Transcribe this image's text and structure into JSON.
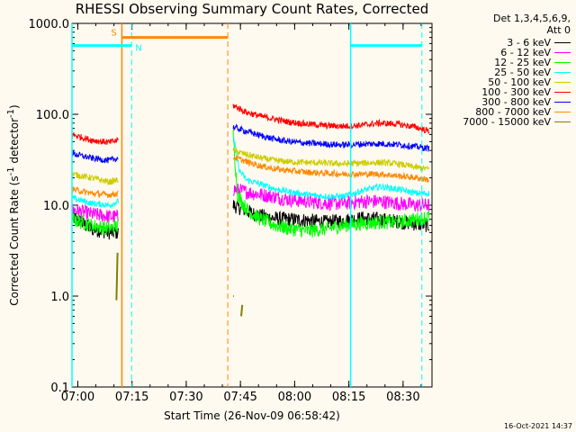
{
  "chart_data": {
    "type": "line",
    "title": "RHESSI Observing Summary Count Rates, Corrected",
    "xlabel": "Start Time (26-Nov-09 06:58:42)",
    "ylabel_main": "Corrected Count Rate (s",
    "ylabel_sup1": "-1",
    "ylabel_mid": " detector",
    "ylabel_sup2": "-1",
    "ylabel_end": ")",
    "yscale": "log",
    "ylim": [
      0.1,
      1000
    ],
    "xlim_minutes": [
      -0.3,
      99.3
    ],
    "xtick_labels": [
      "07:00",
      "07:15",
      "07:30",
      "07:45",
      "08:00",
      "08:15",
      "08:30"
    ],
    "xtick_minutes": [
      1.3,
      16.3,
      31.3,
      46.3,
      61.3,
      76.3,
      91.3
    ],
    "ytick_labels": [
      "1000.0",
      "100.0",
      "10.0",
      "1.0",
      "0.1"
    ],
    "ytick_values": [
      1000,
      100,
      10,
      1,
      0.1
    ],
    "legend_header": [
      "Det 1,3,4,5,6,9,",
      "Att 0"
    ],
    "series": [
      {
        "name": "3 - 6 keV",
        "color": "#000000",
        "segments": [
          {
            "x": [
              -0.3,
              5,
              10,
              12.5
            ],
            "y": [
              7.5,
              5.5,
              5,
              5
            ]
          },
          {
            "x": [
              44.3,
              50,
              55,
              60,
              65,
              70,
              75,
              80,
              85,
              90,
              95,
              98.5
            ],
            "y": [
              10,
              8,
              7.2,
              7,
              6.8,
              6.5,
              6.8,
              7.2,
              7,
              6.6,
              6.2,
              6
            ]
          }
        ]
      },
      {
        "name": "6 - 12 keV",
        "color": "#ff00ff",
        "segments": [
          {
            "x": [
              -0.3,
              5,
              10,
              12.5
            ],
            "y": [
              9,
              8,
              7.5,
              7.5
            ]
          },
          {
            "x": [
              44.3,
              50,
              55,
              60,
              65,
              70,
              75,
              80,
              85,
              90,
              95,
              98.5
            ],
            "y": [
              15,
              13.5,
              12.5,
              11.5,
              11,
              10.5,
              10.5,
              11,
              11,
              10.5,
              10,
              10
            ]
          }
        ]
      },
      {
        "name": "12 - 25 keV",
        "color": "#00ff00",
        "segments": [
          {
            "x": [
              -0.3,
              5,
              10,
              12.5
            ],
            "y": [
              7,
              6,
              5.5,
              6
            ]
          },
          {
            "x": [
              44.3,
              45.5,
              48,
              52,
              56,
              60,
              65,
              70,
              75,
              80,
              85,
              90,
              95,
              98.5
            ],
            "y": [
              60,
              13,
              9,
              7,
              6,
              5.5,
              5.2,
              5.5,
              6,
              6.3,
              6.5,
              6.5,
              7,
              7.5
            ]
          }
        ]
      },
      {
        "name": "25 - 50 keV",
        "color": "#00ffff",
        "segments": [
          {
            "x": [
              -0.3,
              5,
              10,
              12.5
            ],
            "y": [
              12,
              10.5,
              10,
              11
            ]
          },
          {
            "x": [
              44.3,
              46,
              48,
              52,
              56,
              60,
              65,
              70,
              75,
              80,
              85,
              90,
              95,
              98.5
            ],
            "y": [
              60,
              24,
              19,
              17,
              15,
              14,
              13,
              12.5,
              12.5,
              14.5,
              16,
              15,
              13.5,
              13.5
            ]
          }
        ]
      },
      {
        "name": "50 - 100 keV",
        "color": "#cccc00",
        "segments": [
          {
            "x": [
              -0.3,
              5,
              10,
              12.5
            ],
            "y": [
              22,
              20,
              18,
              19
            ]
          },
          {
            "x": [
              44.3,
              48,
              52,
              56,
              60,
              65,
              70,
              75,
              80,
              85,
              90,
              95,
              98.5
            ],
            "y": [
              40,
              36,
              33,
              31,
              30,
              29.5,
              29,
              28.5,
              29,
              29.5,
              28.5,
              26,
              25
            ]
          }
        ]
      },
      {
        "name": "100 - 300 keV",
        "color": "#ff0000",
        "segments": [
          {
            "x": [
              -0.3,
              5,
              10,
              12.5
            ],
            "y": [
              60,
              52,
              49,
              52
            ]
          },
          {
            "x": [
              44.3,
              48,
              52,
              56,
              60,
              65,
              70,
              75,
              80,
              85,
              90,
              95,
              98.5
            ],
            "y": [
              125,
              105,
              95,
              88,
              82,
              78,
              75,
              74,
              76,
              80,
              78,
              72,
              65
            ]
          }
        ]
      },
      {
        "name": "300 - 800 keV",
        "color": "#0000ff",
        "segments": [
          {
            "x": [
              -0.3,
              5,
              10,
              12.5
            ],
            "y": [
              37,
              33,
              31,
              33
            ]
          },
          {
            "x": [
              44.3,
              48,
              52,
              56,
              60,
              65,
              70,
              75,
              80,
              85,
              90,
              95,
              98.5
            ],
            "y": [
              72,
              65,
              58,
              53,
              50,
              48,
              47,
              46,
              47,
              47.5,
              46.5,
              44,
              42
            ]
          }
        ]
      },
      {
        "name": "800 - 7000 keV",
        "color": "#ff8800",
        "segments": [
          {
            "x": [
              -0.3,
              5,
              10,
              12.5
            ],
            "y": [
              15,
              13.5,
              13,
              13.5
            ]
          },
          {
            "x": [
              44.3,
              48,
              52,
              56,
              60,
              65,
              70,
              75,
              80,
              85,
              90,
              95,
              98.5
            ],
            "y": [
              34,
              30,
              27,
              25,
              24,
              23,
              22.5,
              22,
              22,
              22,
              21,
              20,
              19
            ]
          }
        ]
      },
      {
        "name": "7000 - 15000 keV",
        "color": "#808000",
        "segments": [
          {
            "x": [
              12,
              12.3
            ],
            "y": [
              0.9,
              3
            ]
          },
          {
            "x": [
              44.3,
              44.5
            ],
            "y": [
              1.0,
              1.0
            ]
          },
          {
            "x": [
              46.5,
              46.8
            ],
            "y": [
              0.6,
              0.8
            ]
          }
        ]
      }
    ],
    "flag_bars": [
      {
        "label": "",
        "color": "#00ffff",
        "x": [
          -0.3,
          16.2
        ],
        "y": 570
      },
      {
        "label": "N",
        "color": "#00ffff",
        "x": [
          76.8,
          96.5
        ],
        "y": 570
      },
      {
        "label": "S",
        "color": "#ff8800",
        "x": [
          13.5,
          42.8
        ],
        "y": 700
      }
    ],
    "vlines": [
      {
        "color": "#00ffff",
        "style": "solid",
        "x": -0.3
      },
      {
        "color": "#ff8800",
        "style": "solid",
        "x": 13.5
      },
      {
        "color": "#00ffff",
        "style": "dashed",
        "x": 16.2
      },
      {
        "color": "#ff8800",
        "style": "dashed",
        "x": 42.8
      },
      {
        "color": "#00ffff",
        "style": "solid",
        "x": 76.8
      },
      {
        "color": "#00ffff",
        "style": "dashed",
        "x": 96.5
      }
    ]
  },
  "timestamp": "16-Oct-2021 14:37"
}
